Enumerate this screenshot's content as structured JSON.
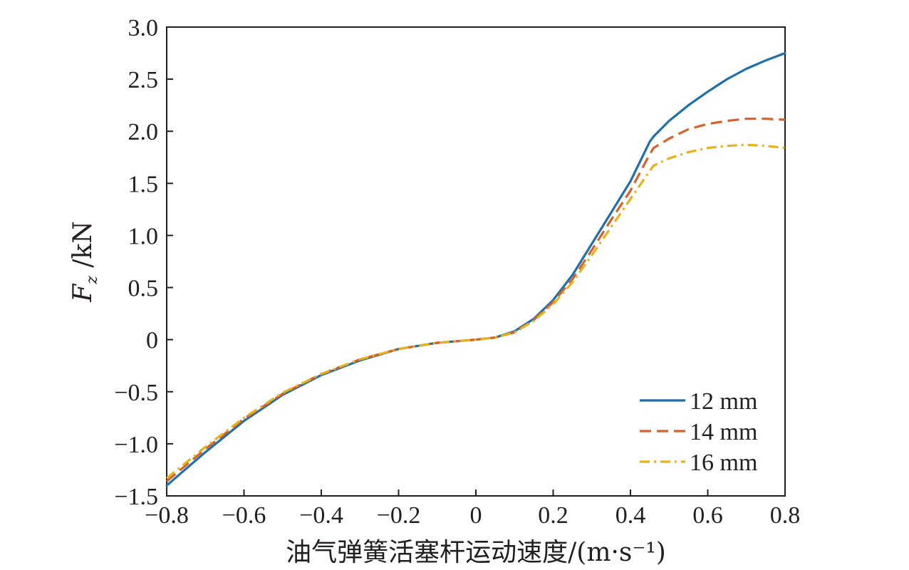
{
  "chart_data": {
    "type": "line",
    "xlabel": "油气弹簧活塞杆运动速度/(m·s⁻¹)",
    "ylabel_main": "F",
    "ylabel_sub": "z",
    "ylabel_unit": " /kN",
    "xlim": [
      -0.8,
      0.8
    ],
    "ylim": [
      -1.5,
      3.0
    ],
    "xticks": [
      -0.8,
      -0.6,
      -0.4,
      -0.2,
      0,
      0.2,
      0.4,
      0.6,
      0.8
    ],
    "xtick_labels": [
      "−0.8",
      "−0.6",
      "−0.4",
      "−0.2",
      "0",
      "0.2",
      "0.4",
      "0.6",
      "0.8"
    ],
    "yticks": [
      -1.5,
      -1.0,
      -0.5,
      0,
      0.5,
      1.0,
      1.5,
      2.0,
      2.5,
      3.0
    ],
    "ytick_labels": [
      "−1.5",
      "−1.0",
      "−0.5",
      "0",
      "0.5",
      "1.0",
      "1.5",
      "2.0",
      "2.5",
      "3.0"
    ],
    "grid": false,
    "legend_position": "bottom-right",
    "x": [
      -0.8,
      -0.7,
      -0.6,
      -0.5,
      -0.4,
      -0.3,
      -0.2,
      -0.1,
      0,
      0.05,
      0.1,
      0.15,
      0.2,
      0.25,
      0.3,
      0.35,
      0.4,
      0.45,
      0.46,
      0.5,
      0.55,
      0.6,
      0.65,
      0.7,
      0.75,
      0.8
    ],
    "series": [
      {
        "name": "12 mm",
        "color": "#1f6fad",
        "dash": "solid",
        "values": [
          -1.4,
          -1.08,
          -0.78,
          -0.53,
          -0.34,
          -0.2,
          -0.09,
          -0.03,
          0.0,
          0.02,
          0.08,
          0.2,
          0.38,
          0.62,
          0.92,
          1.22,
          1.52,
          1.9,
          1.95,
          2.1,
          2.25,
          2.38,
          2.5,
          2.6,
          2.68,
          2.75
        ]
      },
      {
        "name": "14 mm",
        "color": "#d4622a",
        "dash": "dashed",
        "values": [
          -1.36,
          -1.05,
          -0.76,
          -0.52,
          -0.33,
          -0.19,
          -0.09,
          -0.03,
          0.0,
          0.02,
          0.07,
          0.19,
          0.36,
          0.58,
          0.86,
          1.15,
          1.43,
          1.78,
          1.84,
          1.93,
          2.02,
          2.07,
          2.1,
          2.12,
          2.12,
          2.11
        ]
      },
      {
        "name": "16 mm",
        "color": "#e8b11c",
        "dash": "dashdot",
        "values": [
          -1.33,
          -1.03,
          -0.75,
          -0.51,
          -0.33,
          -0.19,
          -0.09,
          -0.03,
          0.0,
          0.02,
          0.07,
          0.18,
          0.34,
          0.55,
          0.81,
          1.08,
          1.35,
          1.62,
          1.67,
          1.74,
          1.8,
          1.84,
          1.86,
          1.87,
          1.86,
          1.84
        ]
      }
    ]
  }
}
